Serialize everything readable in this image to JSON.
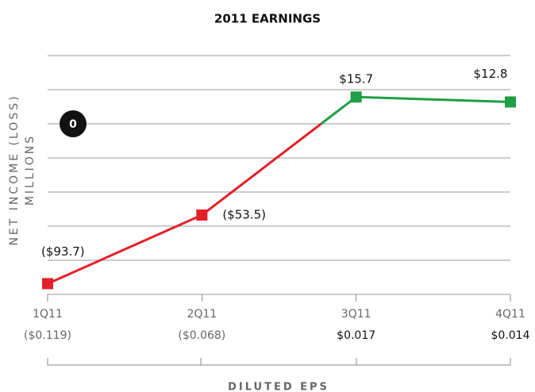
{
  "chart_data": {
    "type": "line",
    "title": "2011 EARNINGS",
    "y_label": "NET INCOME (LOSS)",
    "y_label_unit": "MILLIONS",
    "x_label": "DILUTED EPS",
    "categories": [
      "1Q11",
      "2Q11",
      "3Q11",
      "4Q11"
    ],
    "eps_labels": [
      "($0.119)",
      "($0.068)",
      "$0.017",
      "$0.014"
    ],
    "values": [
      -93.7,
      -53.5,
      15.7,
      12.8
    ],
    "value_labels": [
      "($93.7)",
      "($53.5)",
      "$15.7",
      "$12.8"
    ],
    "negative_color": "#e3202a",
    "positive_color": "#1f9e46",
    "ylim": [
      -100,
      40
    ],
    "yticks": [
      -100,
      -80,
      -60,
      -40,
      -20,
      0,
      20,
      40
    ],
    "grid": true
  }
}
